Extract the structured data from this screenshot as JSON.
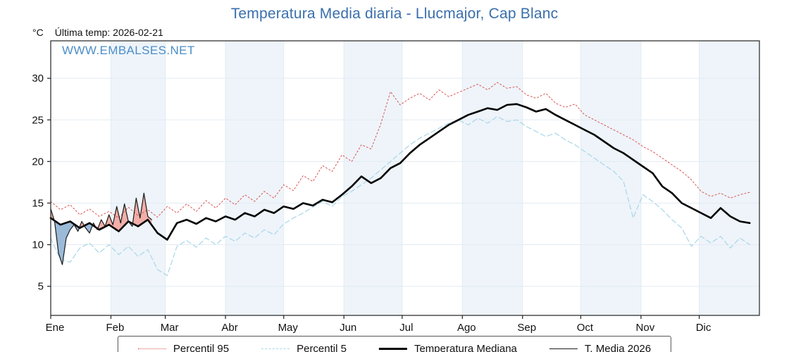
{
  "title": "Temperatura Media diaria - Llucmajor, Cap Blanc",
  "y_unit_label": "°C",
  "last_temp_label": "Última temp: 2026-02-21",
  "watermark": "WWW.EMBALSES.NET",
  "colors": {
    "title": "#3a6fad",
    "watermark": "#4b8ec7",
    "band": "#eef4fa",
    "grid": "#e3ebf2",
    "axis": "#222222"
  },
  "chart_data": {
    "type": "line",
    "title": "Temperatura Media diaria - Llucmajor, Cap Blanc",
    "xlabel": "",
    "ylabel": "°C",
    "xlim": [
      0,
      365
    ],
    "ylim": [
      1.5,
      34.5
    ],
    "y_ticks": [
      5,
      10,
      15,
      20,
      25,
      30
    ],
    "x_tick_labels": [
      "Ene",
      "Feb",
      "Mar",
      "Abr",
      "May",
      "Jun",
      "Jul",
      "Ago",
      "Sep",
      "Oct",
      "Nov",
      "Dic"
    ],
    "month_start_days": [
      0,
      31,
      59,
      90,
      120,
      151,
      181,
      212,
      243,
      273,
      304,
      334,
      365
    ],
    "legend_position": "bottom",
    "series": [
      {
        "name": "Percentil 95",
        "style": "dotted",
        "color": "#d9534f",
        "width": 1,
        "x": [
          0,
          5,
          10,
          15,
          20,
          25,
          30,
          35,
          40,
          45,
          50,
          55,
          60,
          65,
          70,
          75,
          80,
          85,
          90,
          95,
          100,
          105,
          110,
          115,
          120,
          125,
          130,
          135,
          140,
          145,
          150,
          155,
          160,
          165,
          170,
          175,
          180,
          185,
          190,
          195,
          200,
          205,
          210,
          215,
          220,
          225,
          230,
          235,
          240,
          245,
          250,
          255,
          260,
          265,
          270,
          275,
          280,
          285,
          290,
          295,
          300,
          305,
          310,
          315,
          320,
          325,
          330,
          335,
          340,
          345,
          350,
          355,
          360
        ],
        "y": [
          15.2,
          14.2,
          14.8,
          13.6,
          14.3,
          13.4,
          14.0,
          13.2,
          14.5,
          13.5,
          14.2,
          13.3,
          14.6,
          13.8,
          14.9,
          14.0,
          15.3,
          14.4,
          15.6,
          14.8,
          16.0,
          15.2,
          16.4,
          15.6,
          17.2,
          16.5,
          18.3,
          17.6,
          19.5,
          18.8,
          20.8,
          20.0,
          22.0,
          21.5,
          24.5,
          28.4,
          26.8,
          27.6,
          28.2,
          27.4,
          28.6,
          27.8,
          28.3,
          28.8,
          29.3,
          28.6,
          29.5,
          28.8,
          29.0,
          28.0,
          27.6,
          28.2,
          27.0,
          26.5,
          26.9,
          25.6,
          25.0,
          24.4,
          23.8,
          23.2,
          22.6,
          21.8,
          21.2,
          20.4,
          19.6,
          18.8,
          17.8,
          16.4,
          15.8,
          16.2,
          15.6,
          16.0,
          16.3
        ]
      },
      {
        "name": "Percentil 5",
        "style": "dashed",
        "color": "#a8d6e9",
        "width": 1.2,
        "x": [
          0,
          5,
          10,
          15,
          20,
          25,
          30,
          35,
          40,
          45,
          50,
          55,
          60,
          65,
          70,
          75,
          80,
          85,
          90,
          95,
          100,
          105,
          110,
          115,
          120,
          125,
          130,
          135,
          140,
          145,
          150,
          155,
          160,
          165,
          170,
          175,
          180,
          185,
          190,
          195,
          200,
          205,
          210,
          215,
          220,
          225,
          230,
          235,
          240,
          245,
          250,
          255,
          260,
          265,
          270,
          275,
          280,
          285,
          290,
          295,
          300,
          305,
          310,
          315,
          320,
          325,
          330,
          335,
          340,
          345,
          350,
          355,
          360
        ],
        "y": [
          10.8,
          8.2,
          7.9,
          9.6,
          10.2,
          9.0,
          10.0,
          8.8,
          9.8,
          8.6,
          9.4,
          7.0,
          6.3,
          9.8,
          10.5,
          9.7,
          10.8,
          10.0,
          11.0,
          10.4,
          11.4,
          10.8,
          11.8,
          11.2,
          12.5,
          13.2,
          13.8,
          14.5,
          15.2,
          14.6,
          15.8,
          16.4,
          17.2,
          18.0,
          19.0,
          20.0,
          21.0,
          22.0,
          22.8,
          23.4,
          24.0,
          24.6,
          25.0,
          24.4,
          25.2,
          24.6,
          25.4,
          24.8,
          25.0,
          24.2,
          23.6,
          23.0,
          23.4,
          22.6,
          22.0,
          21.2,
          20.4,
          19.6,
          18.8,
          17.6,
          13.2,
          16.0,
          15.2,
          14.2,
          13.0,
          12.0,
          9.8,
          11.0,
          10.2,
          11.0,
          9.6,
          10.8,
          10.0
        ]
      },
      {
        "name": "Temperatura Mediana",
        "style": "solid",
        "color": "#000000",
        "width": 2.6,
        "x": [
          0,
          5,
          10,
          15,
          20,
          25,
          30,
          35,
          40,
          45,
          50,
          55,
          60,
          65,
          70,
          75,
          80,
          85,
          90,
          95,
          100,
          105,
          110,
          115,
          120,
          125,
          130,
          135,
          140,
          145,
          150,
          155,
          160,
          165,
          170,
          175,
          180,
          185,
          190,
          195,
          200,
          205,
          210,
          215,
          220,
          225,
          230,
          235,
          240,
          245,
          250,
          255,
          260,
          265,
          270,
          275,
          280,
          285,
          290,
          295,
          300,
          305,
          310,
          315,
          320,
          325,
          330,
          335,
          340,
          345,
          350,
          355,
          360
        ],
        "y": [
          13.2,
          12.4,
          12.8,
          12.0,
          12.6,
          11.8,
          12.4,
          11.6,
          12.8,
          12.2,
          13.0,
          11.4,
          10.6,
          12.6,
          13.0,
          12.5,
          13.2,
          12.8,
          13.4,
          13.0,
          13.8,
          13.4,
          14.2,
          13.8,
          14.6,
          14.3,
          15.0,
          14.7,
          15.4,
          15.1,
          16.0,
          17.0,
          18.2,
          17.4,
          18.0,
          19.2,
          19.8,
          21.0,
          22.0,
          22.8,
          23.6,
          24.4,
          25.0,
          25.6,
          26.0,
          26.4,
          26.2,
          26.8,
          26.9,
          26.5,
          26.0,
          26.3,
          25.6,
          25.0,
          24.4,
          23.8,
          23.2,
          22.4,
          21.6,
          21.0,
          20.2,
          19.4,
          18.6,
          17.0,
          16.2,
          15.0,
          14.4,
          13.8,
          13.2,
          14.4,
          13.4,
          12.8,
          12.6
        ]
      },
      {
        "name": "T. Media 2026",
        "style": "solid",
        "color": "#1b1b1b",
        "width": 1.2,
        "fill_vs": "Temperatura Mediana",
        "fill_above": "#f2a69e",
        "fill_below": "#8fb2d4",
        "x": [
          0,
          2,
          4,
          6,
          8,
          10,
          12,
          14,
          16,
          18,
          20,
          22,
          24,
          26,
          28,
          30,
          32,
          34,
          36,
          38,
          40,
          42,
          44,
          46,
          48,
          50,
          52
        ],
        "y": [
          14.3,
          12.8,
          9.0,
          7.6,
          10.8,
          11.8,
          12.4,
          11.6,
          12.8,
          12.0,
          11.4,
          12.6,
          11.8,
          13.0,
          12.2,
          13.6,
          12.4,
          14.6,
          12.6,
          14.9,
          12.8,
          12.2,
          15.6,
          13.2,
          16.2,
          13.4,
          13.0
        ]
      }
    ]
  }
}
